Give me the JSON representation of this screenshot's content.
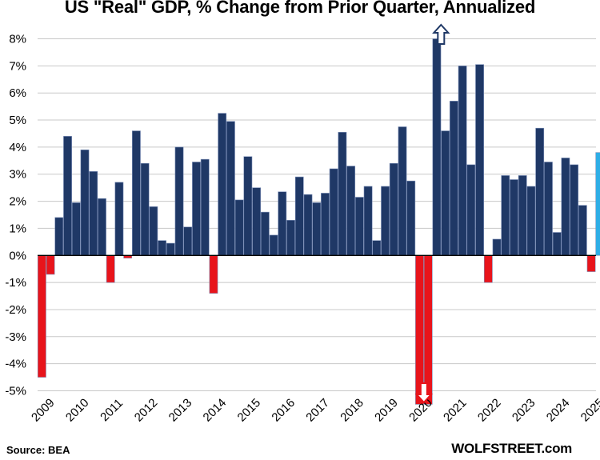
{
  "chart_data": {
    "type": "bar",
    "title": "US \"Real\" GDP, % Change from Prior Quarter, Annualized",
    "source": "Source: BEA",
    "watermark": "WOLFSTREET.com",
    "y_ticks": [
      "8%",
      "7%",
      "6%",
      "5%",
      "4%",
      "3%",
      "2%",
      "1%",
      "0%",
      "-1%",
      "-2%",
      "-3%",
      "-4%",
      "-5%"
    ],
    "ylim": [
      -5,
      8
    ],
    "year_labels": [
      "2009",
      "2010",
      "2011",
      "2012",
      "2013",
      "2014",
      "2015",
      "2016",
      "2017",
      "2018",
      "2019",
      "2020",
      "2021",
      "2022",
      "2023",
      "2024",
      "2025"
    ],
    "first_quarter": "2009 Q1",
    "values": [
      -4.5,
      -0.7,
      1.4,
      4.4,
      1.95,
      3.9,
      3.1,
      2.1,
      -1.0,
      2.7,
      -0.1,
      4.6,
      3.4,
      1.8,
      0.55,
      0.45,
      4.0,
      1.05,
      3.45,
      3.55,
      -1.4,
      5.25,
      4.95,
      2.05,
      3.65,
      2.5,
      1.6,
      0.75,
      2.35,
      1.3,
      2.9,
      2.25,
      1.95,
      2.3,
      3.2,
      4.55,
      3.3,
      2.15,
      2.55,
      0.55,
      2.55,
      3.4,
      4.75,
      2.75,
      -5.5,
      -5.5,
      8.0,
      4.6,
      5.7,
      7.0,
      3.35,
      7.05,
      -1.0,
      0.6,
      2.95,
      2.8,
      2.95,
      2.55,
      4.7,
      3.45,
      0.85,
      3.6,
      3.35,
      1.85,
      -0.6,
      3.8
    ],
    "colors": {
      "positive": "#1f3866",
      "negative": "#e8141b",
      "latest": "#2eaee6",
      "outline": "#7c8fb8",
      "grid": "#c8c8c8",
      "overflow_up_arrow": "#1f3866",
      "overflow_down_arrow": "#e8141b"
    },
    "overflow_markers": [
      {
        "quarter_index": 46,
        "direction": "up"
      },
      {
        "quarter_index": 44,
        "direction": "down"
      }
    ],
    "grid": true,
    "legend": "none"
  }
}
